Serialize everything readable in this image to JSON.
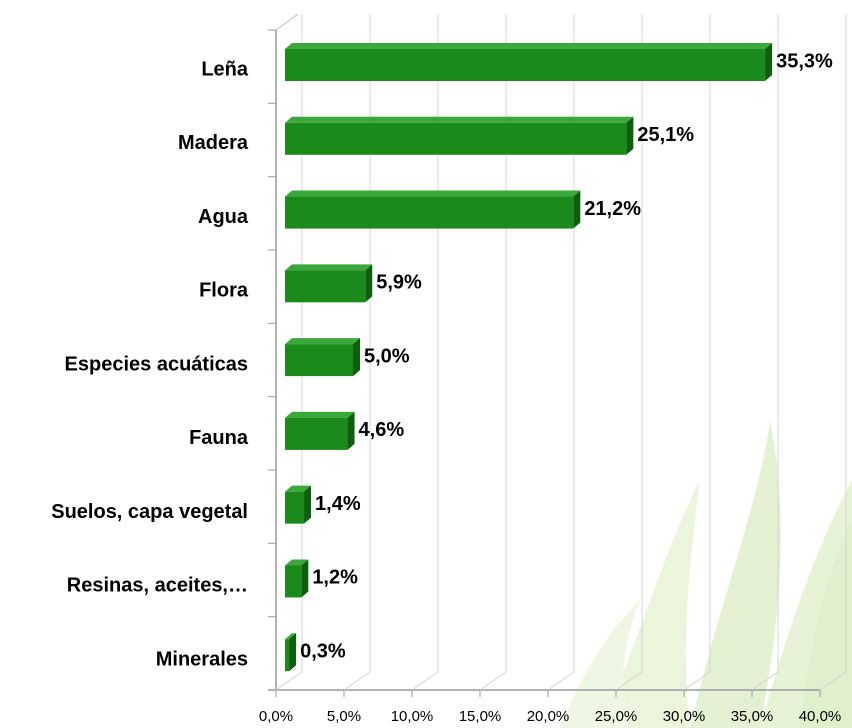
{
  "chart_data": {
    "type": "bar",
    "orientation": "horizontal",
    "categories": [
      "Leña",
      "Madera",
      "Agua",
      "Flora",
      "Especies acuáticas",
      "Fauna",
      "Suelos, capa vegetal",
      "Resinas, aceites,…",
      "Minerales"
    ],
    "values": [
      35.3,
      25.1,
      21.2,
      5.9,
      5.0,
      4.6,
      1.4,
      1.2,
      0.3
    ],
    "value_labels": [
      "35,3%",
      "25,1%",
      "21,2%",
      "5,9%",
      "5,0%",
      "4,6%",
      "1,4%",
      "1,2%",
      "0,3%"
    ],
    "color": "#1a8a1a",
    "xlim": [
      0,
      40
    ],
    "xticks": [
      {
        "value": 0,
        "label": "0,0%"
      },
      {
        "value": 5,
        "label": "5,0%"
      },
      {
        "value": 10,
        "label": "10,0%"
      },
      {
        "value": 15,
        "label": "15,0%"
      },
      {
        "value": 20,
        "label": "20,0%"
      },
      {
        "value": 25,
        "label": "25,0%"
      },
      {
        "value": 30,
        "label": "30,0%"
      },
      {
        "value": 35,
        "label": "35,0%"
      },
      {
        "value": 40,
        "label": "40,0%"
      }
    ],
    "grid": true
  }
}
